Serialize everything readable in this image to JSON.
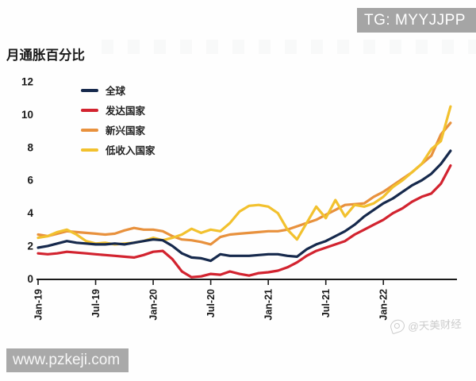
{
  "overlays": {
    "tg_badge": "TG: MYYJJPP",
    "site_badge": "www.pzkeji.com",
    "weibo_watermark": "@天美财经"
  },
  "chart_data": {
    "type": "line",
    "title": "月通胀百分比",
    "xlabel": "",
    "ylabel": "",
    "ylim": [
      0,
      12
    ],
    "y_ticks": [
      0,
      2,
      4,
      6,
      8,
      10,
      12
    ],
    "grid": false,
    "legend_position": "top-left",
    "x_tick_labels": [
      "Jan-19",
      "Jul-19",
      "Jan-20",
      "Jul-20",
      "Jan-21",
      "Jul-21",
      "Jan-22"
    ],
    "x_tick_month_index": [
      0,
      6,
      12,
      18,
      24,
      30,
      36
    ],
    "x": [
      "Jan-19",
      "Feb-19",
      "Mar-19",
      "Apr-19",
      "May-19",
      "Jun-19",
      "Jul-19",
      "Aug-19",
      "Sep-19",
      "Oct-19",
      "Nov-19",
      "Dec-19",
      "Jan-20",
      "Feb-20",
      "Mar-20",
      "Apr-20",
      "May-20",
      "Jun-20",
      "Jul-20",
      "Aug-20",
      "Sep-20",
      "Oct-20",
      "Nov-20",
      "Dec-20",
      "Jan-21",
      "Feb-21",
      "Mar-21",
      "Apr-21",
      "May-21",
      "Jun-21",
      "Jul-21",
      "Aug-21",
      "Sep-21",
      "Oct-21",
      "Nov-21",
      "Dec-21",
      "Jan-22",
      "Feb-22",
      "Mar-22",
      "Apr-22",
      "May-22",
      "Jun-22",
      "Jul-22",
      "Aug-22"
    ],
    "series": [
      {
        "key": "global",
        "name": "全球",
        "color": "#16294c",
        "values": [
          1.9,
          2.0,
          2.15,
          2.3,
          2.2,
          2.15,
          2.1,
          2.1,
          2.15,
          2.1,
          2.2,
          2.3,
          2.4,
          2.35,
          2.0,
          1.55,
          1.3,
          1.25,
          1.1,
          1.5,
          1.4,
          1.4,
          1.4,
          1.45,
          1.5,
          1.5,
          1.4,
          1.35,
          1.8,
          2.1,
          2.3,
          2.6,
          2.9,
          3.3,
          3.8,
          4.2,
          4.6,
          4.9,
          5.3,
          5.7,
          6.0,
          6.4,
          7.0,
          7.8
        ]
      },
      {
        "key": "developed-countries",
        "name": "发达国家",
        "color": "#d2232f",
        "values": [
          1.55,
          1.5,
          1.55,
          1.65,
          1.6,
          1.55,
          1.5,
          1.45,
          1.4,
          1.35,
          1.3,
          1.45,
          1.65,
          1.7,
          1.2,
          0.45,
          0.1,
          0.15,
          0.3,
          0.25,
          0.45,
          0.3,
          0.2,
          0.35,
          0.4,
          0.5,
          0.7,
          1.0,
          1.4,
          1.7,
          1.9,
          2.1,
          2.3,
          2.7,
          3.0,
          3.3,
          3.6,
          4.0,
          4.3,
          4.7,
          5.0,
          5.2,
          5.8,
          6.9
        ]
      },
      {
        "key": "emerging-countries",
        "name": "新兴国家",
        "color": "#e8913d",
        "values": [
          2.7,
          2.6,
          2.75,
          2.9,
          2.85,
          2.8,
          2.75,
          2.7,
          2.75,
          2.95,
          3.1,
          3.0,
          3.0,
          2.9,
          2.6,
          2.4,
          2.35,
          2.25,
          2.1,
          2.55,
          2.7,
          2.75,
          2.8,
          2.85,
          2.9,
          2.9,
          3.0,
          3.2,
          3.4,
          3.6,
          3.9,
          4.2,
          4.5,
          4.55,
          4.6,
          5.0,
          5.3,
          5.7,
          6.1,
          6.5,
          7.0,
          7.5,
          8.8,
          9.5
        ]
      },
      {
        "key": "low-income-countries",
        "name": "低收入国家",
        "color": "#f2c12e",
        "values": [
          2.5,
          2.6,
          2.85,
          3.0,
          2.7,
          2.3,
          2.15,
          2.2,
          2.1,
          2.15,
          2.2,
          2.3,
          2.5,
          2.35,
          2.5,
          2.7,
          3.05,
          2.8,
          3.0,
          2.9,
          3.4,
          4.1,
          4.45,
          4.5,
          4.4,
          4.0,
          3.0,
          2.4,
          3.4,
          4.4,
          3.7,
          4.8,
          3.8,
          4.5,
          4.4,
          4.6,
          5.0,
          5.6,
          6.0,
          6.5,
          7.0,
          7.9,
          8.4,
          10.5
        ]
      }
    ],
    "draw_order": [
      1,
      2,
      3,
      0
    ],
    "axis_color": "#1a1a1a"
  }
}
